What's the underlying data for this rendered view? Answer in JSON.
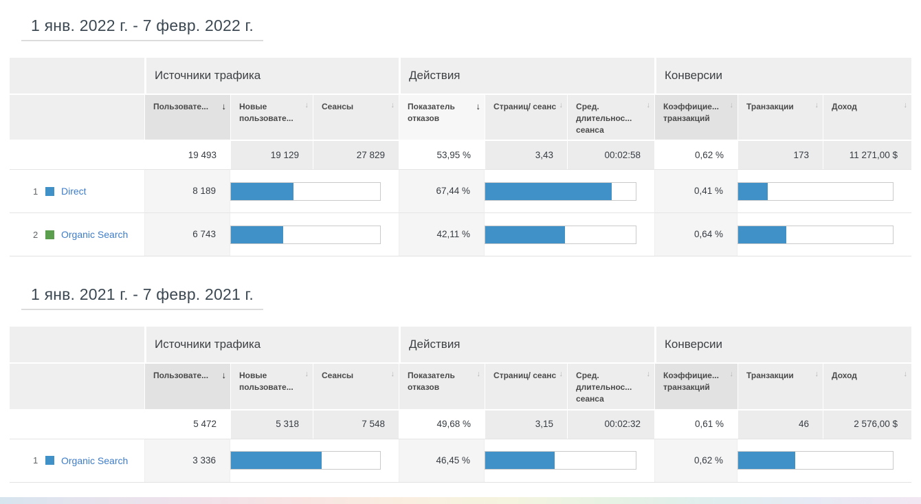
{
  "t1": {
    "title": "1 янв. 2022 г. - 7 февр. 2022 г.",
    "groups": [
      "Источники трафика",
      "Действия",
      "Конверсии"
    ],
    "cols": [
      {
        "label": "Пользовате...",
        "sort": "bold"
      },
      {
        "label": "Новые пользовате...",
        "sort": "light"
      },
      {
        "label": "Сеансы",
        "sort": "light"
      },
      {
        "label": "Показатель отказов",
        "sort": "bold"
      },
      {
        "label": "Страниц/ сеанс",
        "sort": "light"
      },
      {
        "label": "Сред. длительнос... сеанса",
        "sort": "light"
      },
      {
        "label": "Коэффицие... транзакций",
        "sort": "light"
      },
      {
        "label": "Транзакции",
        "sort": "light"
      },
      {
        "label": "Доход",
        "sort": "light"
      }
    ],
    "totals": {
      "users": "19 493",
      "new_users": "19 129",
      "sessions": "27 829",
      "bounce": "53,95 %",
      "pages_session": "3,43",
      "avg_duration": "00:02:58",
      "conv_rate": "0,62 %",
      "transactions": "173",
      "revenue": "11 271,00 $"
    },
    "rows": [
      {
        "rank": "1",
        "color": "#4191c9",
        "label": "Direct",
        "users": "8 189",
        "users_bar": 42,
        "bounce": "67,44 %",
        "bounce_bar": 84,
        "conv": "0,41 %",
        "conv_bar": 19
      },
      {
        "rank": "2",
        "color": "#5b9e4d",
        "label": "Organic Search",
        "users": "6 743",
        "users_bar": 35,
        "bounce": "42,11 %",
        "bounce_bar": 53,
        "conv": "0,64 %",
        "conv_bar": 31
      }
    ]
  },
  "t2": {
    "title": "1 янв. 2021 г. - 7 февр. 2021 г.",
    "groups": [
      "Источники трафика",
      "Действия",
      "Конверсии"
    ],
    "cols": [
      {
        "label": "Пользовате...",
        "sort": "bold"
      },
      {
        "label": "Новые пользовате...",
        "sort": "light"
      },
      {
        "label": "Сеансы",
        "sort": "light"
      },
      {
        "label": "Показатель отказов",
        "sort": "light"
      },
      {
        "label": "Страниц/ сеанс",
        "sort": "light"
      },
      {
        "label": "Сред. длительнос... сеанса",
        "sort": "light"
      },
      {
        "label": "Коэффицие... транзакций",
        "sort": "light"
      },
      {
        "label": "Транзакции",
        "sort": "light"
      },
      {
        "label": "Доход",
        "sort": "light"
      }
    ],
    "totals": {
      "users": "5 472",
      "new_users": "5 318",
      "sessions": "7 548",
      "bounce": "49,68 %",
      "pages_session": "3,15",
      "avg_duration": "00:02:32",
      "conv_rate": "0,61 %",
      "transactions": "46",
      "revenue": "2 576,00 $"
    },
    "rows": [
      {
        "rank": "1",
        "color": "#4191c9",
        "label": "Organic Search",
        "users": "3 336",
        "users_bar": 61,
        "bounce": "46,45 %",
        "bounce_bar": 46,
        "conv": "0,62 %",
        "conv_bar": 37
      }
    ]
  },
  "bar_color": "#4191c9"
}
